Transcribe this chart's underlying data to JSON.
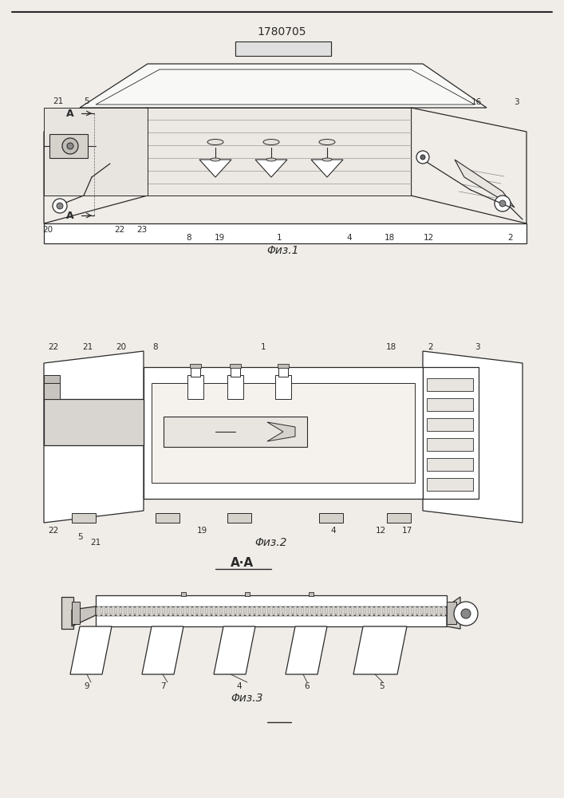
{
  "title": "1780705",
  "bg": "#f0ede8",
  "lc": "#2a2a2a",
  "fig1_cap": "Φиз.1",
  "fig2_cap": "Φиз.2",
  "fig3_cap": "Φиз.3",
  "aa_label": "A·A"
}
